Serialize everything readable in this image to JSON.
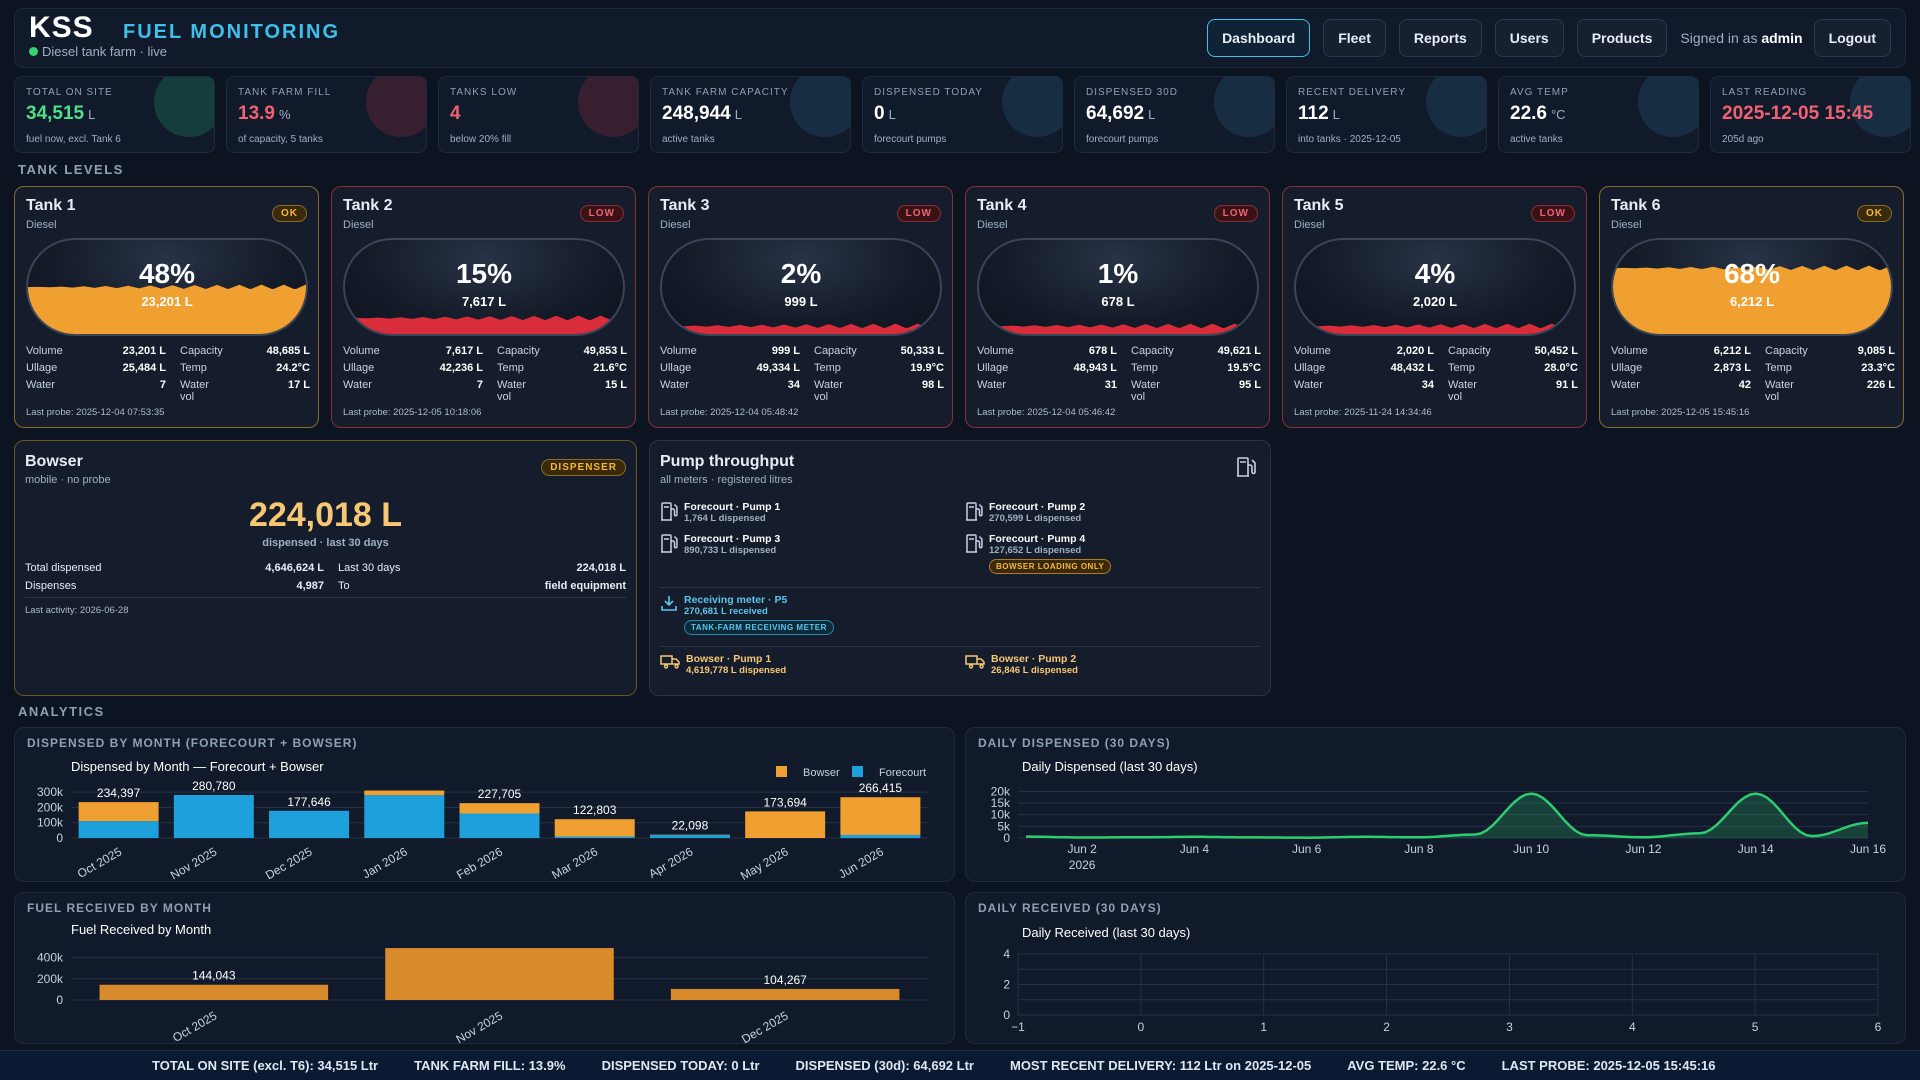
{
  "header": {
    "logo": "KSS",
    "title": "FUEL MONITORING",
    "subtitle": "Diesel tank farm · live",
    "nav": [
      "Dashboard",
      "Fleet",
      "Reports",
      "Users",
      "Products"
    ],
    "signed_prefix": "Signed in as",
    "user": "admin",
    "logout": "Logout"
  },
  "stats": [
    {
      "label": "TOTAL ON SITE",
      "value": "34,515",
      "unit": "L",
      "sub": "fuel now, excl. Tank 6",
      "color": "#4fe08a",
      "glow": "#1ea672"
    },
    {
      "label": "TANK FARM FILL",
      "value": "13.9",
      "unit": "%",
      "sub": "of capacity, 5 tanks",
      "color": "#f06272",
      "glow": "#b03040"
    },
    {
      "label": "TANKS LOW",
      "value": "4",
      "unit": "",
      "sub": "below 20% fill",
      "color": "#f06272",
      "glow": "#b03040"
    },
    {
      "label": "TANK FARM CAPACITY",
      "value": "248,944",
      "unit": "L",
      "sub": "active tanks",
      "color": "#ffffff",
      "glow": "#2a6a8a"
    },
    {
      "label": "DISPENSED TODAY",
      "value": "0",
      "unit": "L",
      "sub": "forecourt pumps",
      "color": "#ffffff",
      "glow": "#2a6a8a"
    },
    {
      "label": "DISPENSED 30D",
      "value": "64,692",
      "unit": "L",
      "sub": "forecourt pumps",
      "color": "#ffffff",
      "glow": "#2a6a8a"
    },
    {
      "label": "RECENT DELIVERY",
      "value": "112",
      "unit": "L",
      "sub": "into tanks · 2025-12-05",
      "color": "#ffffff",
      "glow": "#2a6a8a"
    },
    {
      "label": "AVG TEMP",
      "value": "22.6",
      "unit": "°C",
      "sub": "active tanks",
      "color": "#ffffff",
      "glow": "#2a6a8a"
    },
    {
      "label": "LAST READING",
      "value": "2025-12-05 15:45",
      "unit": "",
      "sub": "205d ago",
      "color": "#f06272",
      "glow": "#2a6a8a"
    }
  ],
  "sections": {
    "tanks": "TANK LEVELS",
    "analytics": "ANALYTICS"
  },
  "tank_labels": {
    "volume": "Volume",
    "capacity": "Capacity",
    "ullage": "Ullage",
    "temp": "Temp",
    "water": "Water",
    "water_vol": "Water vol"
  },
  "tanks": [
    {
      "name": "Tank 1",
      "type": "Diesel",
      "status": "OK",
      "pct_label": "48%",
      "fill": 0.48,
      "litres": "23,201 L",
      "volume": "23,201 L",
      "capacity": "48,685 L",
      "ullage": "25,484 L",
      "temp": "24.2°C",
      "water": "7",
      "water_vol": "17 L",
      "probe": "Last probe: 2025-12-04 07:53:35"
    },
    {
      "name": "Tank 2",
      "type": "Diesel",
      "status": "LOW",
      "pct_label": "15%",
      "fill": 0.15,
      "litres": "7,617 L",
      "volume": "7,617 L",
      "capacity": "49,853 L",
      "ullage": "42,236 L",
      "temp": "21.6°C",
      "water": "7",
      "water_vol": "15 L",
      "probe": "Last probe: 2025-12-05 10:18:06"
    },
    {
      "name": "Tank 3",
      "type": "Diesel",
      "status": "LOW",
      "pct_label": "2%",
      "fill": 0.02,
      "litres": "999 L",
      "volume": "999 L",
      "capacity": "50,333 L",
      "ullage": "49,334 L",
      "temp": "19.9°C",
      "water": "34",
      "water_vol": "98 L",
      "probe": "Last probe: 2025-12-04 05:48:42"
    },
    {
      "name": "Tank 4",
      "type": "Diesel",
      "status": "LOW",
      "pct_label": "1%",
      "fill": 0.01,
      "litres": "678 L",
      "volume": "678 L",
      "capacity": "49,621 L",
      "ullage": "48,943 L",
      "temp": "19.5°C",
      "water": "31",
      "water_vol": "95 L",
      "probe": "Last probe: 2025-12-04 05:46:42"
    },
    {
      "name": "Tank 5",
      "type": "Diesel",
      "status": "LOW",
      "pct_label": "4%",
      "fill": 0.04,
      "litres": "2,020 L",
      "volume": "2,020 L",
      "capacity": "50,452 L",
      "ullage": "48,432 L",
      "temp": "28.0°C",
      "water": "34",
      "water_vol": "91 L",
      "probe": "Last probe: 2025-11-24 14:34:46"
    },
    {
      "name": "Tank 6",
      "type": "Diesel",
      "status": "OK",
      "pct_label": "68%",
      "fill": 0.68,
      "litres": "6,212 L",
      "volume": "6,212 L",
      "capacity": "9,085 L",
      "ullage": "2,873 L",
      "temp": "23.3°C",
      "water": "42",
      "water_vol": "226 L",
      "probe": "Last probe: 2025-12-05 15:45:16"
    }
  ],
  "bowser": {
    "name": "Bowser",
    "sub": "mobile · no probe",
    "badge": "DISPENSER",
    "big": "224,018 L",
    "big_sub": "dispensed · last 30 days",
    "total_label": "Total dispensed",
    "total": "4,646,624 L",
    "last30_label": "Last 30 days",
    "last30": "224,018 L",
    "disp_label": "Dispenses",
    "disp": "4,987",
    "to_label": "To",
    "to": "field equipment",
    "activity": "Last activity: 2026-06-28"
  },
  "pump": {
    "title": "Pump throughput",
    "sub": "all meters · registered litres",
    "forecourt": [
      {
        "name": "Forecourt · Pump 1",
        "detail": "1,764 L dispensed",
        "tag": ""
      },
      {
        "name": "Forecourt · Pump 2",
        "detail": "270,599 L dispensed",
        "tag": ""
      },
      {
        "name": "Forecourt · Pump 3",
        "detail": "890,733 L dispensed",
        "tag": ""
      },
      {
        "name": "Forecourt · Pump 4",
        "detail": "127,652 L dispensed",
        "tag": "BOWSER LOADING ONLY"
      }
    ],
    "receiving": {
      "name": "Receiving meter · P5",
      "detail": "270,681 L received",
      "tag": "TANK-FARM RECEIVING METER"
    },
    "bowser": [
      {
        "name": "Bowser · Pump 1",
        "detail": "4,619,778 L dispensed"
      },
      {
        "name": "Bowser · Pump 2",
        "detail": "26,846 L dispensed"
      }
    ]
  },
  "panels": {
    "p1": "DISPENSED BY MONTH (FORECOURT + BOWSER)",
    "p2": "DAILY DISPENSED (30 DAYS)",
    "p3": "FUEL RECEIVED BY MONTH",
    "p4": "DAILY RECEIVED (30 DAYS)"
  },
  "chart_data": [
    {
      "type": "bar",
      "title": "Dispensed by Month — Forecourt + Bowser",
      "categories": [
        "Oct 2025",
        "Nov 2025",
        "Dec 2025",
        "Jan 2026",
        "Feb 2026",
        "Mar 2026",
        "Apr 2026",
        "May 2026",
        "Jun 2026"
      ],
      "series": [
        {
          "name": "Bowser",
          "color": "#f0a030",
          "values": [
            124397,
            0,
            0,
            30000,
            67705,
            112803,
            2098,
            173694,
            246415
          ]
        },
        {
          "name": "Forecourt",
          "color": "#1ea0dc",
          "values": [
            110000,
            280780,
            177646,
            280000,
            160000,
            10000,
            20000,
            0,
            20000
          ]
        }
      ],
      "totals": [
        "234,397",
        "280,780",
        "177,646",
        "",
        "227,705",
        "122,803",
        "22,098",
        "173,694",
        "266,415"
      ],
      "yticks": [
        "0",
        "100k",
        "200k",
        "300k"
      ],
      "ylim": [
        0,
        320000
      ],
      "stacked": true,
      "legend": "top-right"
    },
    {
      "type": "area",
      "title": "Daily Dispensed (last 30 days)",
      "x": [
        "Jun 1",
        "Jun 2",
        "Jun 3",
        "Jun 4",
        "Jun 5",
        "Jun 6",
        "Jun 7",
        "Jun 8",
        "Jun 9",
        "Jun 10",
        "Jun 11",
        "Jun 12",
        "Jun 13",
        "Jun 14",
        "Jun 15",
        "Jun 16"
      ],
      "values": [
        600,
        200,
        300,
        500,
        250,
        150,
        500,
        300,
        1500,
        19000,
        1200,
        300,
        2000,
        19000,
        800,
        6500
      ],
      "xticks": [
        "Jun 2",
        "Jun 4",
        "Jun 6",
        "Jun 8",
        "Jun 10",
        "Jun 12",
        "Jun 14",
        "Jun 16"
      ],
      "xsub": "2026",
      "yticks": [
        "0",
        "5k",
        "10k",
        "15k",
        "20k"
      ],
      "ylim": [
        0,
        21000
      ],
      "color": "#2ecc71"
    },
    {
      "type": "bar",
      "title": "Fuel Received by Month",
      "categories": [
        "Oct 2025",
        "Nov 2025",
        "Dec 2025"
      ],
      "values": [
        144043,
        490000,
        104267
      ],
      "labels": [
        "144,043",
        "",
        "104,267"
      ],
      "yticks": [
        "0",
        "200k",
        "400k"
      ],
      "ylim": [
        0,
        500000
      ],
      "color": "#d98b2b"
    },
    {
      "type": "line",
      "title": "Daily Received (last 30 days)",
      "xticks": [
        "−1",
        "0",
        "1",
        "2",
        "3",
        "4",
        "5",
        "6"
      ],
      "yticks": [
        "0",
        "2",
        "4"
      ],
      "xlim": [
        -1,
        6
      ],
      "ylim": [
        0,
        4
      ],
      "values": []
    }
  ],
  "footer": [
    "TOTAL ON SITE (excl. T6): 34,515 Ltr",
    "TANK FARM FILL: 13.9%",
    "DISPENSED TODAY: 0 Ltr",
    "DISPENSED (30d): 64,692 Ltr",
    "MOST RECENT DELIVERY: 112 Ltr on 2025-12-05",
    "AVG TEMP: 22.6 °C",
    "LAST PROBE: 2025-12-05 15:45:16"
  ]
}
